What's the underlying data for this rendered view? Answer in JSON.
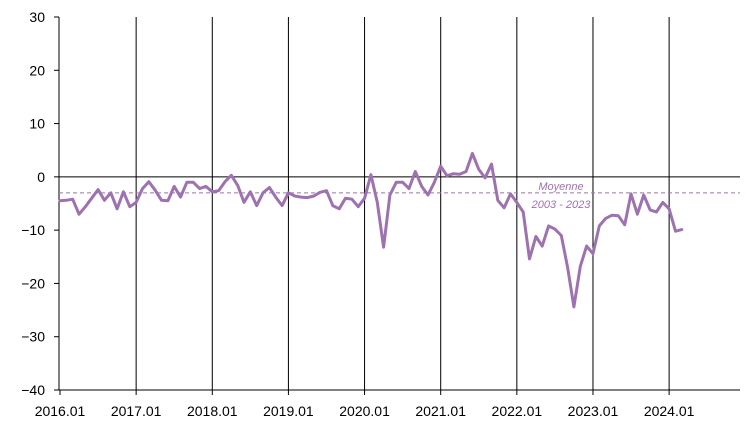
{
  "chart_data": {
    "type": "line",
    "x_start": "2016.01",
    "x_tick_labels": [
      "2016.01",
      "2017.01",
      "2018.01",
      "2019.01",
      "2020.01",
      "2021.01",
      "2022.01",
      "2023.01",
      "2024.01"
    ],
    "y_ticks": [
      30,
      20,
      10,
      0,
      -10,
      -20,
      -30,
      -40
    ],
    "ylim": [
      -40,
      30
    ],
    "grid": "vertical lines at each January",
    "line_color": "#9e72b0",
    "series": [
      {
        "values": [
          -4.5,
          -4.4,
          -4.2,
          -7.0,
          -5.6,
          -4.0,
          -2.4,
          -4.4,
          -3.0,
          -6.0,
          -2.8,
          -5.6,
          -4.8,
          -2.2,
          -0.9,
          -2.5,
          -4.4,
          -4.5,
          -1.8,
          -3.8,
          -1.0,
          -1.0,
          -2.2,
          -1.8,
          -2.8,
          -2.6,
          -0.9,
          0.3,
          -1.6,
          -4.8,
          -2.8,
          -5.4,
          -3.0,
          -2.0,
          -3.8,
          -5.4,
          -3.0,
          -3.6,
          -3.8,
          -3.9,
          -3.6,
          -2.9,
          -2.6,
          -5.4,
          -6.0,
          -4.0,
          -4.2,
          -5.6,
          -4.0,
          0.4,
          -4.8,
          -13.2,
          -3.4,
          -1.0,
          -1.0,
          -2.2,
          1.0,
          -1.8,
          -3.4,
          -1.0,
          2.0,
          0.2,
          0.6,
          0.5,
          1.0,
          4.4,
          1.4,
          -0.2,
          2.4,
          -4.4,
          -5.8,
          -3.2,
          -4.8,
          -6.6,
          -15.4,
          -11.2,
          -13.0,
          -9.2,
          -9.8,
          -11.0,
          -17.0,
          -24.4,
          -16.8,
          -13.0,
          -14.4,
          -9.2,
          -7.8,
          -7.2,
          -7.3,
          -9.0,
          -3.2,
          -7.0,
          -3.4,
          -6.2,
          -6.6,
          -4.8,
          -6.0,
          -10.2,
          -9.9
        ]
      }
    ],
    "average": {
      "value": -3.0,
      "label_line1": "Moyenne",
      "label_line2": "2003 - 2023"
    }
  }
}
